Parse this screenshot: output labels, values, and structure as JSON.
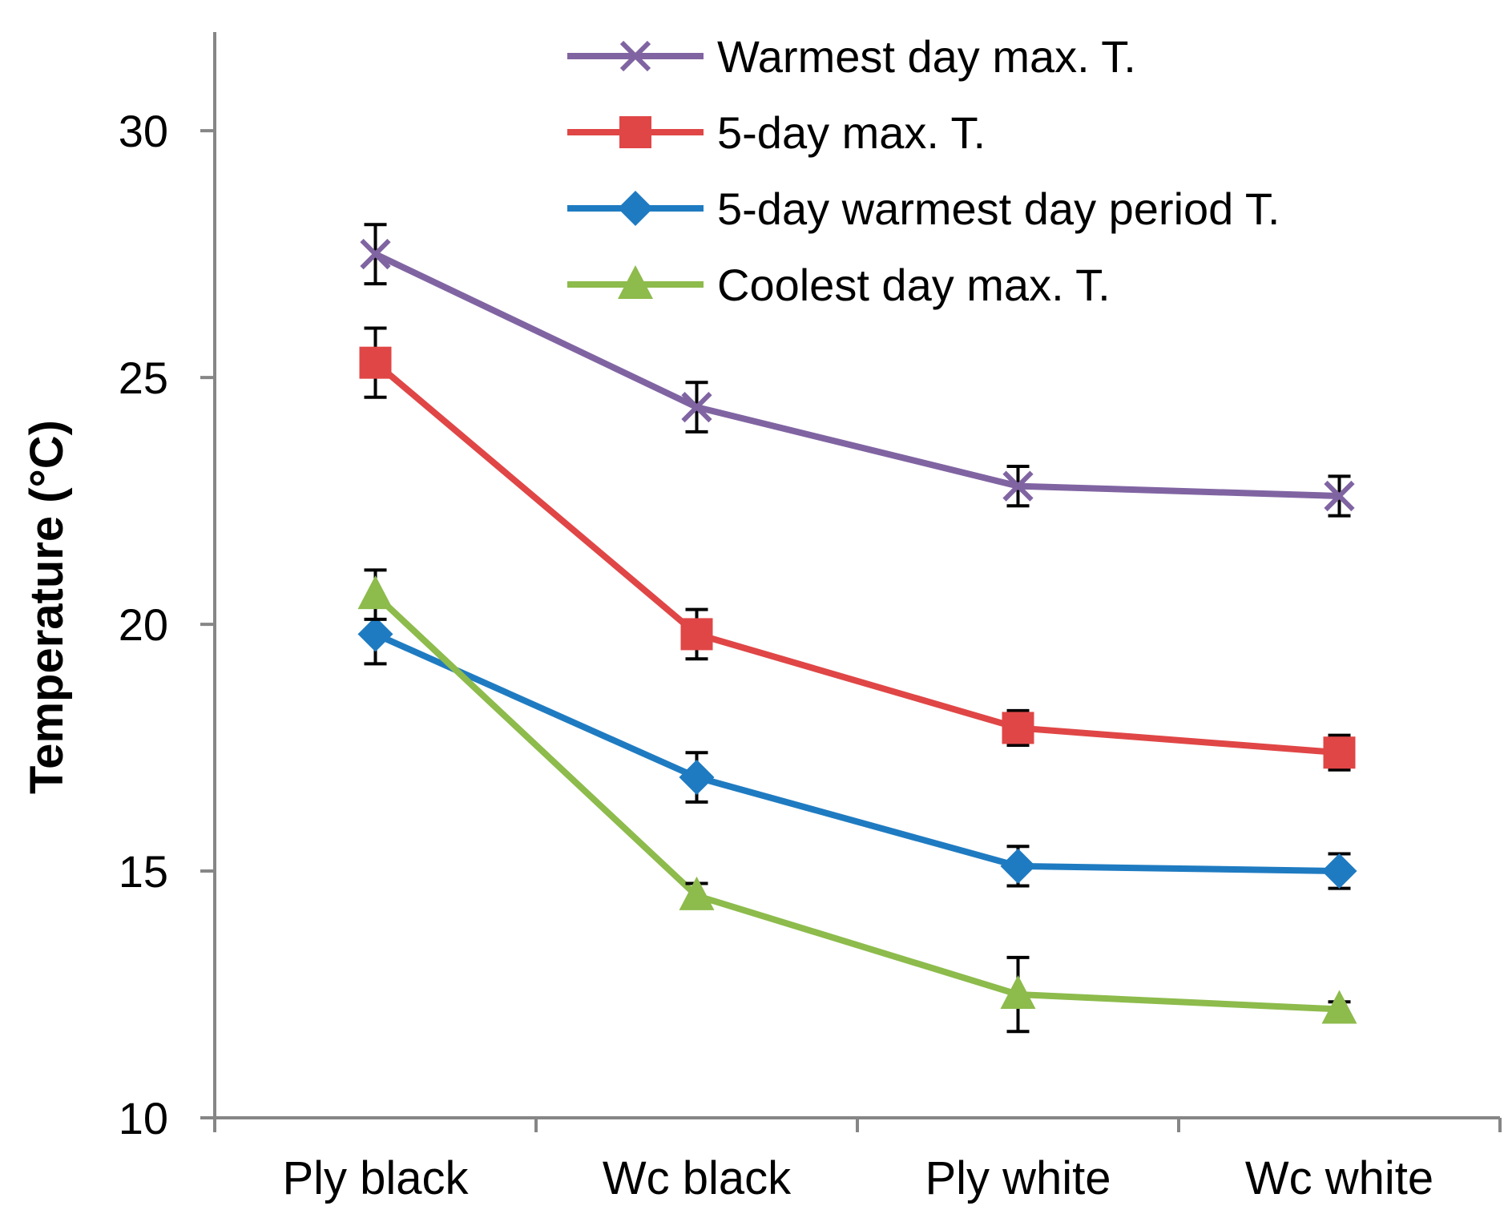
{
  "chart_data": {
    "type": "line",
    "title": "",
    "xlabel": "",
    "ylabel": "Temperature (°C)",
    "ylim": [
      10,
      32
    ],
    "yticks": [
      10,
      15,
      20,
      25,
      30
    ],
    "categories": [
      "Ply black",
      "Wc black",
      "Ply white",
      "Wc white"
    ],
    "grid": false,
    "legend_position": "top-right",
    "series": [
      {
        "name": "Warmest day max. T.",
        "marker": "x",
        "color": "#8064A2",
        "values": [
          27.5,
          24.4,
          22.8,
          22.6
        ],
        "errors": [
          0.6,
          0.5,
          0.4,
          0.4
        ]
      },
      {
        "name": "5-day max. T.",
        "marker": "square",
        "color": "#E04646",
        "values": [
          25.3,
          19.8,
          17.9,
          17.4
        ],
        "errors": [
          0.7,
          0.5,
          0.35,
          0.35
        ]
      },
      {
        "name": "5-day warmest day period T.",
        "marker": "diamond",
        "color": "#1F7BC1",
        "values": [
          19.8,
          16.9,
          15.1,
          15.0
        ],
        "errors": [
          0.6,
          0.5,
          0.4,
          0.35
        ]
      },
      {
        "name": "Coolest day max. T.",
        "marker": "triangle",
        "color": "#8DBB4C",
        "values": [
          20.6,
          14.5,
          12.5,
          12.2
        ],
        "errors": [
          0.5,
          0.25,
          0.75,
          0.15
        ]
      }
    ]
  }
}
